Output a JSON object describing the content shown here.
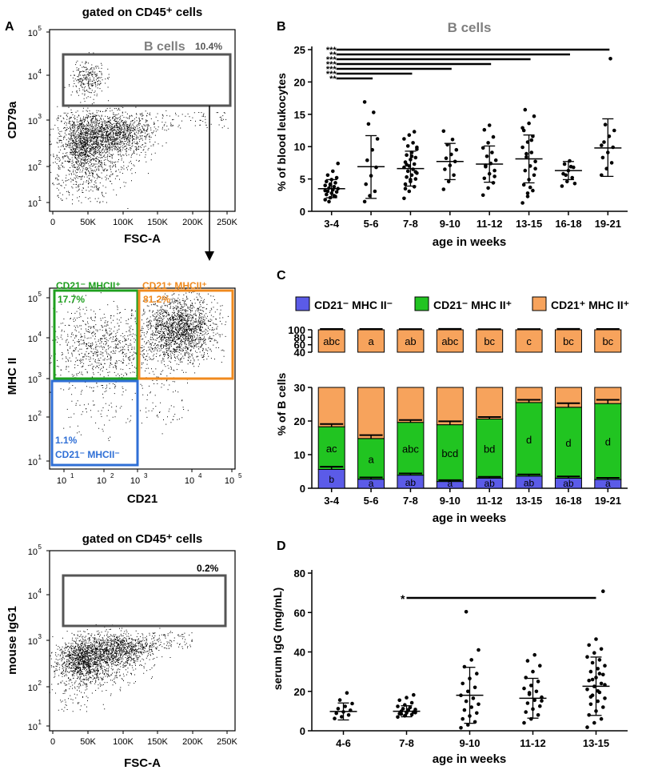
{
  "panel_letters": [
    "A",
    "B",
    "C",
    "D"
  ],
  "colors": {
    "orange": "#F7A35C",
    "green": "#21C421",
    "blue": "#5B5BE8",
    "gate_gray": "#555555",
    "title_gray": "#7f7f7f",
    "blue_gate": "#2F6FD6",
    "green_gate": "#1fa01f",
    "orange_gate": "#F08A1E"
  },
  "flow": {
    "top": {
      "title": "gated on CD45⁺ cells",
      "xlabel": "FSC-A",
      "ylabel": "CD79a",
      "xticks": [
        "0",
        "50K",
        "100K",
        "150K",
        "200K",
        "250K"
      ],
      "yticks": [
        "10",
        "10",
        "10",
        "10",
        "10"
      ],
      "yexp": [
        "1",
        "2",
        "3",
        "4",
        "5"
      ],
      "gate_label": "B cells",
      "gate_pct": "10.4%"
    },
    "mid": {
      "xlabel": "CD21",
      "ylabel": "MHC II",
      "ticks": [
        "10",
        "10",
        "10",
        "10",
        "10"
      ],
      "exp": [
        "1",
        "2",
        "3",
        "4",
        "5"
      ],
      "q_green": "CD21⁻ MHCII⁺",
      "q_green_pct": "17.7%",
      "q_orange": "CD21⁺ MHCII⁺",
      "q_orange_pct": "81.2%",
      "q_blue": "CD21⁻ MHCII⁻",
      "q_blue_pct": "1.1%"
    },
    "bot": {
      "title": "gated on CD45⁺ cells",
      "xlabel": "FSC-A",
      "ylabel": "mouse IgG1",
      "xticks": [
        "0",
        "50K",
        "100K",
        "150K",
        "200K",
        "250K"
      ],
      "yticks": [
        "10",
        "10",
        "10",
        "10",
        "10"
      ],
      "yexp": [
        "1",
        "2",
        "3",
        "4",
        "5"
      ],
      "gate_pct": "0.2%"
    }
  },
  "chart_data": [
    {
      "panel": "B",
      "type": "scatter",
      "title": "B cells",
      "xlabel": "age in weeks",
      "ylabel": "% of blood leukocytes",
      "categories": [
        "3-4",
        "5-6",
        "7-8",
        "9-10",
        "11-12",
        "13-15",
        "16-18",
        "19-21"
      ],
      "ylim": [
        0,
        25
      ],
      "yticks": [
        "0",
        "5",
        "10",
        "15",
        "20",
        "25"
      ],
      "mean": [
        3.5,
        6.9,
        6.6,
        7.7,
        7.3,
        8.1,
        6.3,
        9.8
      ],
      "sd_low": [
        2.1,
        2.0,
        3.9,
        4.9,
        4.5,
        4.4,
        4.9,
        5.4
      ],
      "sd_high": [
        4.9,
        11.7,
        9.3,
        10.5,
        10.1,
        11.8,
        7.7,
        14.3
      ],
      "points": [
        [
          1.8,
          2.1,
          2.3,
          2.6,
          2.8,
          3.0,
          3.1,
          3.3,
          3.5,
          3.6,
          3.8,
          4.0,
          4.2,
          4.4,
          4.6,
          4.9,
          5.2,
          5.6,
          6.2,
          7.4,
          1.5,
          2.4,
          3.2,
          4.1
        ],
        [
          1.5,
          2.4,
          3.1,
          4.2,
          5.5,
          6.8,
          7.9,
          9.5,
          11.2,
          13.5,
          15.3,
          16.9
        ],
        [
          2.0,
          3.1,
          3.8,
          4.2,
          4.6,
          5.0,
          5.3,
          5.6,
          5.9,
          6.2,
          6.5,
          6.8,
          7.0,
          7.3,
          7.6,
          8.0,
          8.3,
          8.7,
          9.1,
          9.6,
          10.1,
          10.6,
          11.2,
          11.8,
          12.3,
          3.5,
          4.9,
          6.1,
          7.2,
          8.5,
          9.9
        ],
        [
          3.4,
          4.6,
          5.6,
          6.5,
          7.1,
          7.7,
          8.2,
          8.8,
          9.5,
          10.3,
          11.1,
          12.4
        ],
        [
          2.5,
          3.6,
          4.4,
          5.1,
          5.8,
          6.3,
          6.9,
          7.4,
          7.9,
          8.5,
          9.1,
          9.8,
          10.6,
          11.5,
          12.6,
          13.3,
          5.4,
          7.1
        ],
        [
          1.3,
          2.3,
          3.2,
          4.1,
          4.9,
          5.6,
          6.3,
          7.0,
          7.7,
          8.4,
          9.1,
          9.9,
          10.7,
          11.6,
          12.5,
          13.6,
          14.7,
          15.7,
          3.7,
          6.6,
          8.9,
          11.0,
          12.9,
          2.8
        ],
        [
          3.9,
          4.6,
          5.2,
          5.8,
          6.3,
          6.8,
          7.3,
          7.8,
          4.3,
          5.6,
          6.9
        ],
        [
          5.6,
          6.6,
          7.5,
          8.3,
          9.1,
          9.9,
          10.7,
          11.6,
          12.5,
          13.4,
          23.6,
          10.2
        ]
      ],
      "sig_lines": [
        {
          "label": "***",
          "to": "19-21"
        },
        {
          "label": "**",
          "to": "16-18"
        },
        {
          "label": "***",
          "to": "13-15"
        },
        {
          "label": "***",
          "to": "11-12"
        },
        {
          "label": "***",
          "to": "9-10"
        },
        {
          "label": "***",
          "to": "7-8"
        },
        {
          "label": "**",
          "to": "5-6"
        }
      ]
    },
    {
      "panel": "C",
      "type": "bar",
      "xlabel": "age in weeks",
      "ylabel": "% of B cells",
      "categories": [
        "3-4",
        "5-6",
        "7-8",
        "9-10",
        "11-12",
        "13-15",
        "16-18",
        "19-21"
      ],
      "yticks_lower": [
        "0",
        "10",
        "20",
        "30"
      ],
      "yticks_upper": [
        "40",
        "60",
        "80",
        "100"
      ],
      "series": [
        {
          "name": "CD21⁻ MHC II⁻",
          "values": [
            5.6,
            2.7,
            3.9,
            2.0,
            3.0,
            3.6,
            3.0,
            2.6
          ],
          "err": [
            0.8,
            0.5,
            0.5,
            0.4,
            0.4,
            0.5,
            0.5,
            0.5
          ],
          "letters": [
            "b",
            "a",
            "ab",
            "a",
            "ab",
            "ab",
            "ab",
            "a"
          ]
        },
        {
          "name": "CD21⁻ MHC II⁺",
          "values": [
            12.7,
            12.1,
            15.7,
            16.9,
            17.6,
            21.9,
            21.1,
            22.6
          ],
          "err": [
            0.8,
            1.0,
            0.7,
            1.0,
            0.6,
            0.8,
            1.2,
            1.1
          ],
          "letters": [
            "ac",
            "a",
            "abc",
            "bcd",
            "bd",
            "d",
            "d",
            "d"
          ]
        },
        {
          "name": "CD21⁺ MHC II⁺",
          "values": [
            81.7,
            85.2,
            80.4,
            81.1,
            79.4,
            74.5,
            75.9,
            74.8
          ],
          "err": [
            0.7,
            0.7,
            0.6,
            0.8,
            0.5,
            0.6,
            0.8,
            0.7
          ],
          "letters": [
            "abc",
            "a",
            "ab",
            "abc",
            "bc",
            "c",
            "bc",
            "bc"
          ]
        }
      ]
    },
    {
      "panel": "D",
      "type": "scatter",
      "xlabel": "age in weeks",
      "ylabel": "serum IgG (mg/mL)",
      "categories": [
        "4-6",
        "7-8",
        "9-10",
        "11-12",
        "13-15"
      ],
      "ylim": [
        0,
        80
      ],
      "yticks": [
        "0",
        "20",
        "40",
        "60",
        "80"
      ],
      "mean": [
        9.8,
        9.9,
        18.0,
        16.5,
        22.6
      ],
      "sd_low": [
        5.5,
        7.1,
        3.8,
        6.4,
        7.8
      ],
      "sd_high": [
        14.1,
        12.7,
        32.2,
        26.6,
        37.4
      ],
      "points": [
        [
          6.2,
          7.1,
          8.0,
          8.9,
          9.6,
          10.4,
          11.2,
          12.4,
          13.8,
          15.6,
          19.2
        ],
        [
          7.0,
          7.6,
          8.2,
          8.7,
          9.1,
          9.5,
          9.9,
          10.3,
          10.8,
          11.2,
          11.8,
          12.4,
          13.1,
          14.2,
          15.5,
          16.8,
          18.2,
          8.5,
          10.6,
          9.2
        ],
        [
          1.5,
          3.0,
          4.5,
          6.0,
          7.5,
          9.0,
          10.5,
          12.0,
          13.5,
          15.0,
          16.5,
          18.0,
          20.0,
          22.0,
          24.0,
          26.5,
          29.0,
          32.5,
          36.0,
          41.0,
          60.4
        ],
        [
          4.0,
          6.0,
          8.0,
          9.5,
          11.0,
          12.5,
          14.0,
          15.5,
          17.0,
          18.5,
          20.0,
          21.5,
          23.0,
          25.0,
          27.0,
          30.0,
          33.0,
          35.5,
          38.5,
          15.2,
          19.3
        ],
        [
          1.8,
          4.0,
          6.0,
          8.0,
          10.0,
          12.0,
          13.5,
          15.0,
          16.5,
          18.0,
          19.5,
          21.0,
          22.5,
          24.0,
          25.5,
          27.0,
          28.5,
          30.0,
          31.5,
          33.0,
          34.5,
          36.0,
          37.5,
          39.5,
          41.5,
          43.5,
          46.5,
          70.8,
          17.2,
          20.2,
          23.3,
          26.0,
          29.0
        ]
      ],
      "sig_lines": [
        {
          "label": "*",
          "from": "7-8",
          "to": "13-15"
        }
      ]
    }
  ]
}
